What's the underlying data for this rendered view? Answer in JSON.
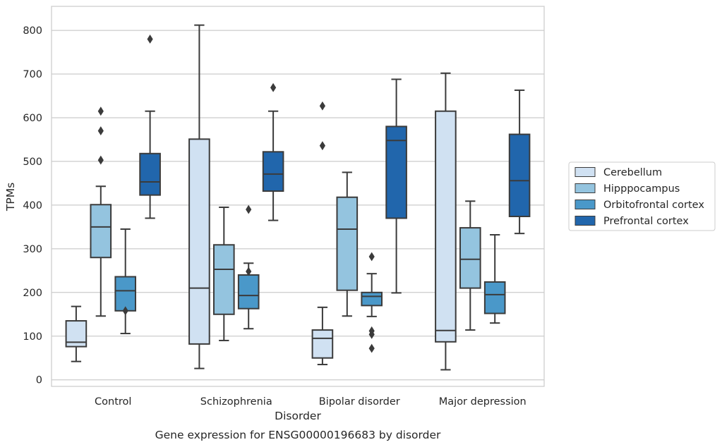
{
  "chart_data": {
    "type": "boxplot",
    "caption": "Gene expression for ENSG00000196683 by disorder",
    "xlabel": "Disorder",
    "ylabel": "TPMs",
    "ylim": [
      -15,
      855
    ],
    "yticks": [
      0,
      100,
      200,
      300,
      400,
      500,
      600,
      700,
      800
    ],
    "grid": "horizontal",
    "legend_position": "right",
    "categories": [
      "Control",
      "Schizophrenia",
      "Bipolar disorder",
      "Major depression"
    ],
    "series": [
      {
        "name": "Cerebellum",
        "color": "#d0e1f2",
        "boxes": [
          {
            "whislo": 42,
            "q1": 76,
            "med": 86,
            "q3": 135,
            "whishi": 168,
            "fliers": []
          },
          {
            "whislo": 26,
            "q1": 82,
            "med": 210,
            "q3": 551,
            "whishi": 812,
            "fliers": []
          },
          {
            "whislo": 35,
            "q1": 50,
            "med": 95,
            "q3": 114,
            "whishi": 166,
            "fliers": [
              536,
              627
            ]
          },
          {
            "whislo": 23,
            "q1": 87,
            "med": 113,
            "q3": 615,
            "whishi": 702,
            "fliers": []
          }
        ]
      },
      {
        "name": "Hipppocampus",
        "color": "#94c4df",
        "boxes": [
          {
            "whislo": 146,
            "q1": 280,
            "med": 350,
            "q3": 401,
            "whishi": 443,
            "fliers": [
              503,
              570,
              615
            ]
          },
          {
            "whislo": 90,
            "q1": 150,
            "med": 253,
            "q3": 309,
            "whishi": 395,
            "fliers": []
          },
          {
            "whislo": 146,
            "q1": 205,
            "med": 345,
            "q3": 418,
            "whishi": 475,
            "fliers": []
          },
          {
            "whislo": 114,
            "q1": 210,
            "med": 276,
            "q3": 348,
            "whishi": 409,
            "fliers": []
          }
        ]
      },
      {
        "name": "Orbitofrontal cortex",
        "color": "#4a98c9",
        "boxes": [
          {
            "whislo": 106,
            "q1": 158,
            "med": 204,
            "q3": 236,
            "whishi": 345,
            "fliers": [
              158
            ]
          },
          {
            "whislo": 117,
            "q1": 163,
            "med": 193,
            "q3": 240,
            "whishi": 267,
            "fliers": [
              248,
              390
            ]
          },
          {
            "whislo": 145,
            "q1": 170,
            "med": 191,
            "q3": 200,
            "whishi": 243,
            "fliers": [
              72,
              104,
              112,
              282
            ]
          },
          {
            "whislo": 130,
            "q1": 152,
            "med": 195,
            "q3": 224,
            "whishi": 332,
            "fliers": []
          }
        ]
      },
      {
        "name": "Prefrontal cortex",
        "color": "#2166ac",
        "boxes": [
          {
            "whislo": 370,
            "q1": 423,
            "med": 453,
            "q3": 518,
            "whishi": 615,
            "fliers": [
              780
            ]
          },
          {
            "whislo": 365,
            "q1": 432,
            "med": 471,
            "q3": 522,
            "whishi": 615,
            "fliers": [
              669
            ]
          },
          {
            "whislo": 199,
            "q1": 370,
            "med": 548,
            "q3": 580,
            "whishi": 688,
            "fliers": []
          },
          {
            "whislo": 335,
            "q1": 374,
            "med": 456,
            "q3": 562,
            "whishi": 663,
            "fliers": []
          }
        ]
      }
    ]
  }
}
